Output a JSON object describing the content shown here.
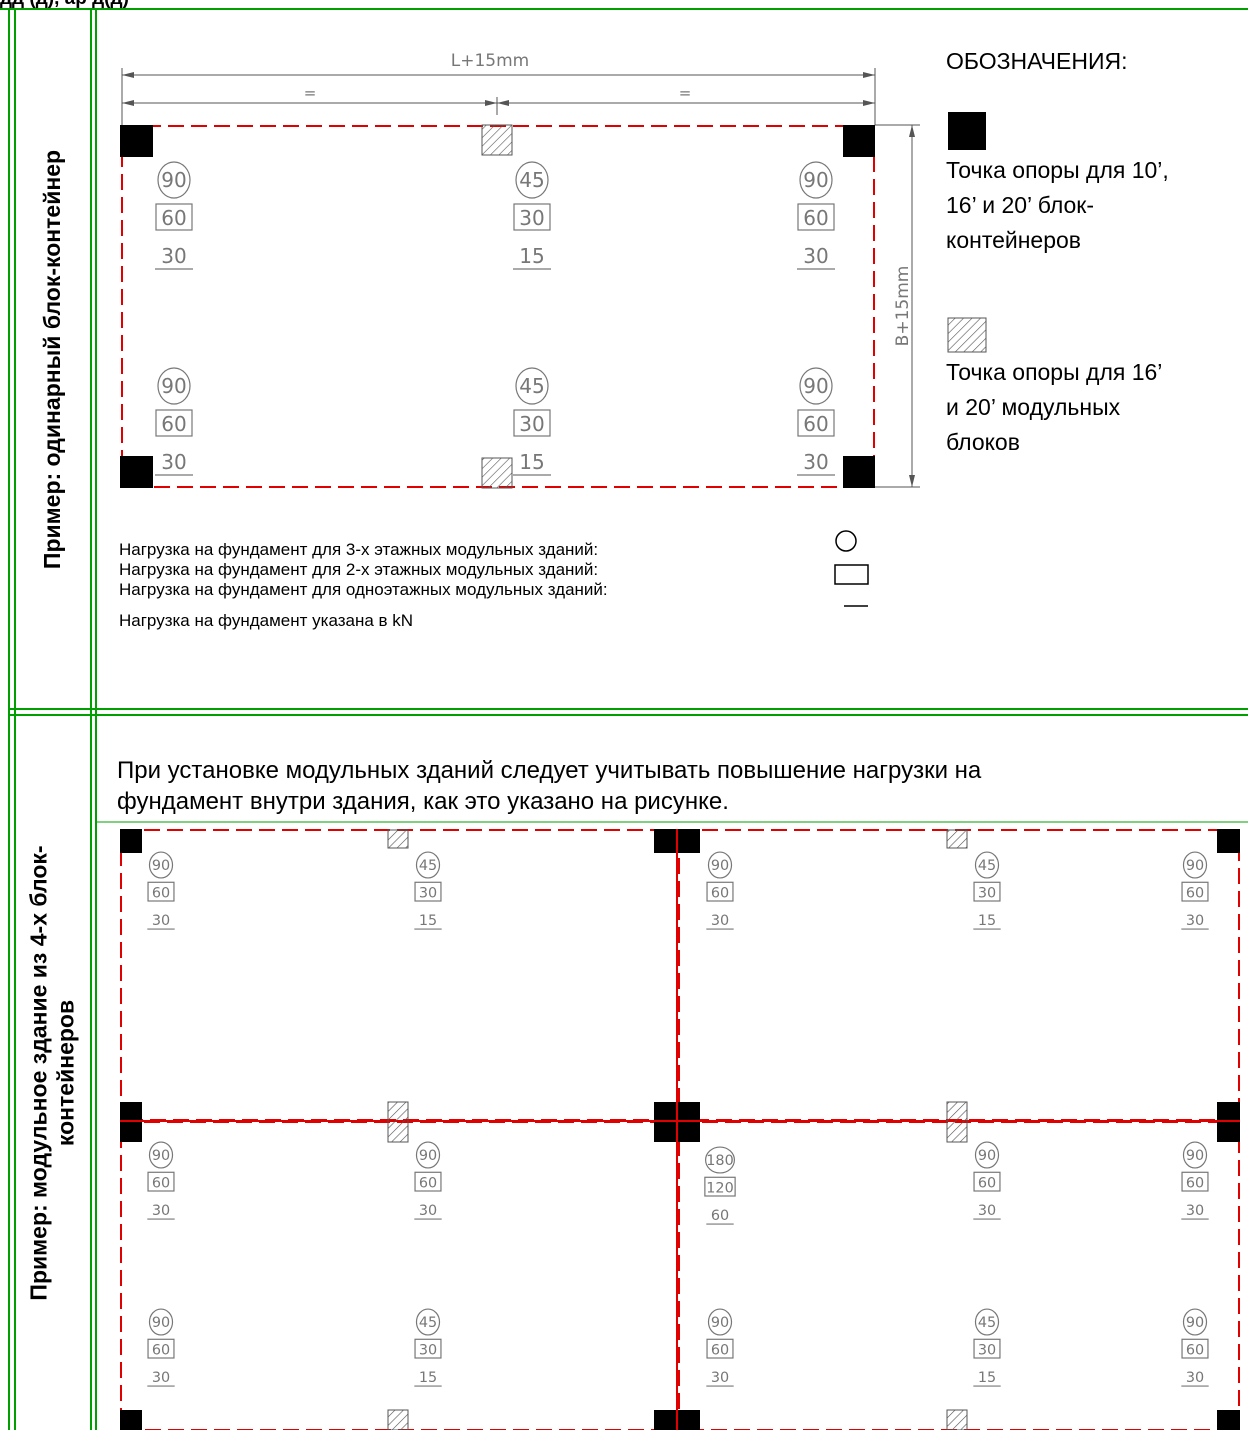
{
  "header_fragment": "дд   (д), ар д(д)",
  "section1": {
    "side_label": "Пример: одинарный блок-контейнер",
    "dim_length": "L+15mm",
    "dim_width": "B+15mm",
    "dim_equal": "=",
    "loads": [
      {
        "circle": "90",
        "square": "60",
        "line": "30"
      },
      {
        "circle": "45",
        "square": "30",
        "line": "15"
      },
      {
        "circle": "90",
        "square": "60",
        "line": "30"
      },
      {
        "circle": "90",
        "square": "60",
        "line": "30"
      },
      {
        "circle": "45",
        "square": "30",
        "line": "15"
      },
      {
        "circle": "90",
        "square": "60",
        "line": "30"
      }
    ],
    "legend_title": "ОБОЗНАЧЕНИЯ:",
    "legend_solid": [
      "Точка опоры для 10’,",
      "16’ и 20’ блок-",
      "контейнеров"
    ],
    "legend_hatched": [
      "Точка опоры для 16’",
      "и 20’ модульных",
      "блоков"
    ],
    "notes": [
      "Нагрузка на фундамент для 3-х этажных модульных зданий:",
      "Нагрузка на фундамент для 2-х этажных модульных зданий:",
      "Нагрузка на фундамент для одноэтажных модульных зданий:",
      "Нагрузка на фундамент указана в kN"
    ]
  },
  "section2": {
    "side_label": [
      "Пример: модульное здание из 4-х блок-",
      "контейнеров"
    ],
    "intro": [
      "При установке модульных зданий следует учитывать повышение нагрузки на",
      "фундамент внутри здания, как это указано на рисунке."
    ],
    "loads": [
      {
        "circle": "90",
        "square": "60",
        "line": "30"
      },
      {
        "circle": "45",
        "square": "30",
        "line": "15"
      },
      {
        "circle": "90",
        "square": "60",
        "line": "30"
      },
      {
        "circle": "45",
        "square": "30",
        "line": "15"
      },
      {
        "circle": "90",
        "square": "60",
        "line": "30"
      },
      {
        "circle": "90",
        "square": "60",
        "line": "30"
      },
      {
        "circle": "90",
        "square": "60",
        "line": "30"
      },
      {
        "circle": "180",
        "square": "120",
        "line": "60"
      },
      {
        "circle": "90",
        "square": "60",
        "line": "30"
      },
      {
        "circle": "90",
        "square": "60",
        "line": "30"
      },
      {
        "circle": "90",
        "square": "60",
        "line": "30"
      },
      {
        "circle": "45",
        "square": "30",
        "line": "15"
      },
      {
        "circle": "90",
        "square": "60",
        "line": "30"
      },
      {
        "circle": "45",
        "square": "30",
        "line": "15"
      },
      {
        "circle": "90",
        "square": "60",
        "line": "30"
      }
    ]
  },
  "colors": {
    "frame": "#00a000",
    "dash": "#e00000",
    "drawing": "#777777",
    "solid": "#000000"
  }
}
